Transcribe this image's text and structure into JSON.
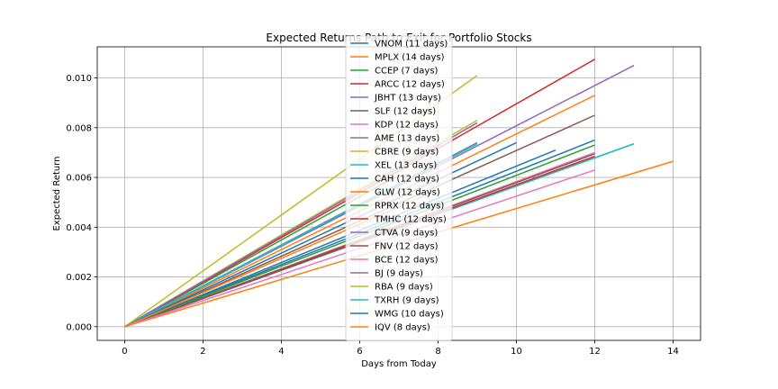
{
  "chart_data": {
    "type": "line",
    "title": "Expected Returns Path to Exit for Portfolio Stocks",
    "xlabel": "Days from Today",
    "ylabel": "Expected Return",
    "xlim": [
      -0.7,
      14.7
    ],
    "ylim": [
      -0.00055,
      0.01125
    ],
    "xticks": [
      0,
      2,
      4,
      6,
      8,
      10,
      12,
      14
    ],
    "yticks": [
      0.0,
      0.002,
      0.004,
      0.006,
      0.008,
      0.01
    ],
    "xtick_labels": [
      "0",
      "2",
      "4",
      "6",
      "8",
      "10",
      "12",
      "14"
    ],
    "ytick_labels": [
      "0.000",
      "0.002",
      "0.004",
      "0.006",
      "0.008",
      "0.010"
    ],
    "grid": true,
    "legend_position": "upper-center",
    "series": [
      {
        "name": "VNOM (11 days)",
        "color": "#1f77b4",
        "x": [
          0,
          11
        ],
        "y": [
          0,
          0.0071
        ]
      },
      {
        "name": "MPLX (14 days)",
        "color": "#ff7f0e",
        "x": [
          0,
          14
        ],
        "y": [
          0,
          0.00665
        ]
      },
      {
        "name": "CCEP (7 days)",
        "color": "#2ca02c",
        "x": [
          0,
          7
        ],
        "y": [
          0,
          0.0061
        ]
      },
      {
        "name": "ARCC (12 days)",
        "color": "#d62728",
        "x": [
          0,
          12
        ],
        "y": [
          0,
          0.01075
        ]
      },
      {
        "name": "JBHT (13 days)",
        "color": "#9467bd",
        "x": [
          0,
          13
        ],
        "y": [
          0,
          0.0105
        ]
      },
      {
        "name": "SLF (12 days)",
        "color": "#8c564b",
        "x": [
          0,
          12
        ],
        "y": [
          0,
          0.0085
        ]
      },
      {
        "name": "KDP (12 days)",
        "color": "#e377c2",
        "x": [
          0,
          12
        ],
        "y": [
          0,
          0.007
        ]
      },
      {
        "name": "AME (13 days)",
        "color": "#7f7f7f",
        "x": [
          0,
          13
        ],
        "y": [
          0,
          0.00735
        ]
      },
      {
        "name": "CBRE (9 days)",
        "color": "#bcbd22",
        "x": [
          0,
          9
        ],
        "y": [
          0,
          0.0083
        ]
      },
      {
        "name": "XEL (13 days)",
        "color": "#17becf",
        "x": [
          0,
          13
        ],
        "y": [
          0,
          0.00735
        ]
      },
      {
        "name": "CAH (12 days)",
        "color": "#1f77b4",
        "x": [
          0,
          12
        ],
        "y": [
          0,
          0.0075
        ]
      },
      {
        "name": "GLW (12 days)",
        "color": "#ff7f0e",
        "x": [
          0,
          12
        ],
        "y": [
          0,
          0.0093
        ]
      },
      {
        "name": "RPRX (12 days)",
        "color": "#2ca02c",
        "x": [
          0,
          12
        ],
        "y": [
          0,
          0.0073
        ]
      },
      {
        "name": "TMHC (12 days)",
        "color": "#d62728",
        "x": [
          0,
          12
        ],
        "y": [
          0,
          0.00685
        ]
      },
      {
        "name": "CTVA (9 days)",
        "color": "#9467bd",
        "x": [
          0,
          9
        ],
        "y": [
          0,
          0.0082
        ]
      },
      {
        "name": "FNV (12 days)",
        "color": "#8c564b",
        "x": [
          0,
          12
        ],
        "y": [
          0,
          0.00695
        ]
      },
      {
        "name": "BCE (12 days)",
        "color": "#e377c2",
        "x": [
          0,
          12
        ],
        "y": [
          0,
          0.0063
        ]
      },
      {
        "name": "BJ (9 days)",
        "color": "#7f7f7f",
        "x": [
          0,
          9
        ],
        "y": [
          0,
          0.0074
        ]
      },
      {
        "name": "RBA (9 days)",
        "color": "#bcbd22",
        "x": [
          0,
          9
        ],
        "y": [
          0,
          0.0101
        ]
      },
      {
        "name": "TXRH (9 days)",
        "color": "#17becf",
        "x": [
          0,
          9
        ],
        "y": [
          0,
          0.00735
        ]
      },
      {
        "name": "WMG (10 days)",
        "color": "#1f77b4",
        "x": [
          0,
          10
        ],
        "y": [
          0,
          0.0074
        ]
      },
      {
        "name": "IQV (8 days)",
        "color": "#ff7f0e",
        "x": [
          0,
          8
        ],
        "y": [
          0,
          0.0055
        ]
      }
    ]
  }
}
